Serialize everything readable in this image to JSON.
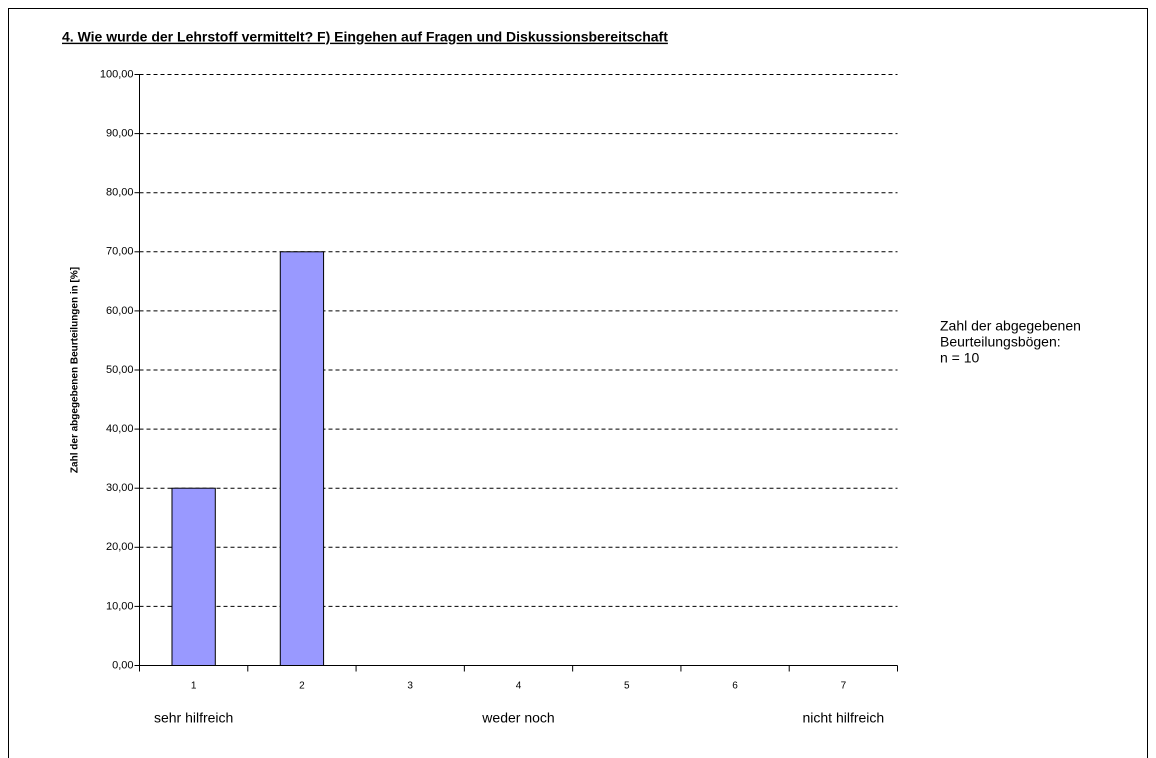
{
  "chart_data": {
    "type": "bar",
    "title": "4. Wie wurde der Lehrstoff vermittelt?   F) Eingehen auf Fragen und Diskussionsbereitschaft",
    "y_axis_label": "Zahl der abgegebenen Beurteilungen in [%]",
    "categories": [
      "1",
      "2",
      "3",
      "4",
      "5",
      "6",
      "7"
    ],
    "values": [
      30,
      70,
      0,
      0,
      0,
      0,
      0
    ],
    "color": "#9999ff",
    "ylim": [
      0,
      100
    ],
    "yticks": [
      {
        "value": 0,
        "label": "0,00"
      },
      {
        "value": 10,
        "label": "10,00"
      },
      {
        "value": 20,
        "label": "20,00"
      },
      {
        "value": 30,
        "label": "30,00"
      },
      {
        "value": 40,
        "label": "40,00"
      },
      {
        "value": 50,
        "label": "50,00"
      },
      {
        "value": 60,
        "label": "60,00"
      },
      {
        "value": 70,
        "label": "70,00"
      },
      {
        "value": 80,
        "label": "80,00"
      },
      {
        "value": 90,
        "label": "90,00"
      },
      {
        "value": 100,
        "label": "100,00"
      }
    ],
    "grid": true,
    "scale_labels": [
      "sehr hilfreich",
      "weder noch",
      "nicht hilfreich"
    ],
    "annotation": [
      "Zahl der abgegebenen",
      "Beurteilungsbögen:",
      "n = 10"
    ]
  }
}
